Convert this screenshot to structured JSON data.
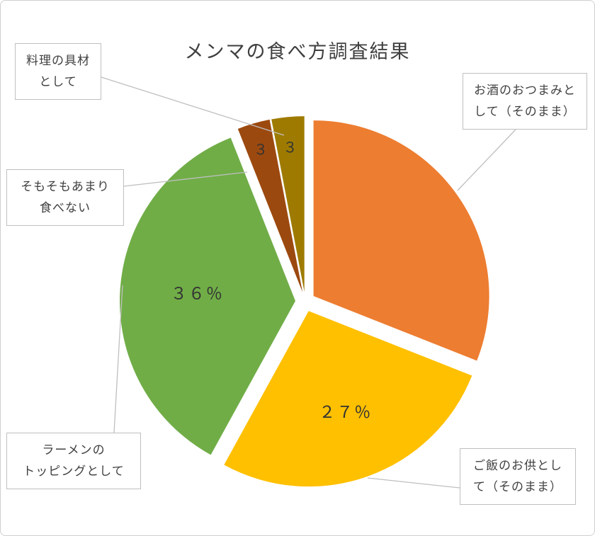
{
  "page": {
    "title": "メンマの食べ方調査結果"
  },
  "chart_data": {
    "type": "pie",
    "title": "メンマの食べ方調査結果",
    "direction": "clockwise",
    "start_angle_deg": 0,
    "exploded": true,
    "legend": "none",
    "units": "percent",
    "series": [
      {
        "id": "alcohol-snack",
        "label": "お酒のおつまみとして（そのまま）",
        "value": 31,
        "data_label": "",
        "color": "#ED7D31",
        "callout_text": "お酒のおつまみと\nして（そのまま）"
      },
      {
        "id": "rice-companion",
        "label": "ご飯のお供として（そのまま）",
        "value": 27,
        "data_label": "２７％",
        "color": "#FFC000",
        "callout_text": "ご飯のお供とし\nて（そのまま）"
      },
      {
        "id": "ramen-topping",
        "label": "ラーメンのトッピングとして",
        "value": 36,
        "data_label": "３６％",
        "color": "#70AD47",
        "callout_text": "ラーメンの\nトッピングとして"
      },
      {
        "id": "rarely-eat",
        "label": "そもそもあまり食べない",
        "value": 3,
        "data_label": "３",
        "color": "#9C490F",
        "callout_text": "そもそもあまり\n食べない"
      },
      {
        "id": "cooking-ingredient",
        "label": "料理の具材として",
        "value": 3,
        "data_label": "３",
        "color": "#9E7B00",
        "callout_text": "料理の具材\nとして"
      }
    ]
  }
}
